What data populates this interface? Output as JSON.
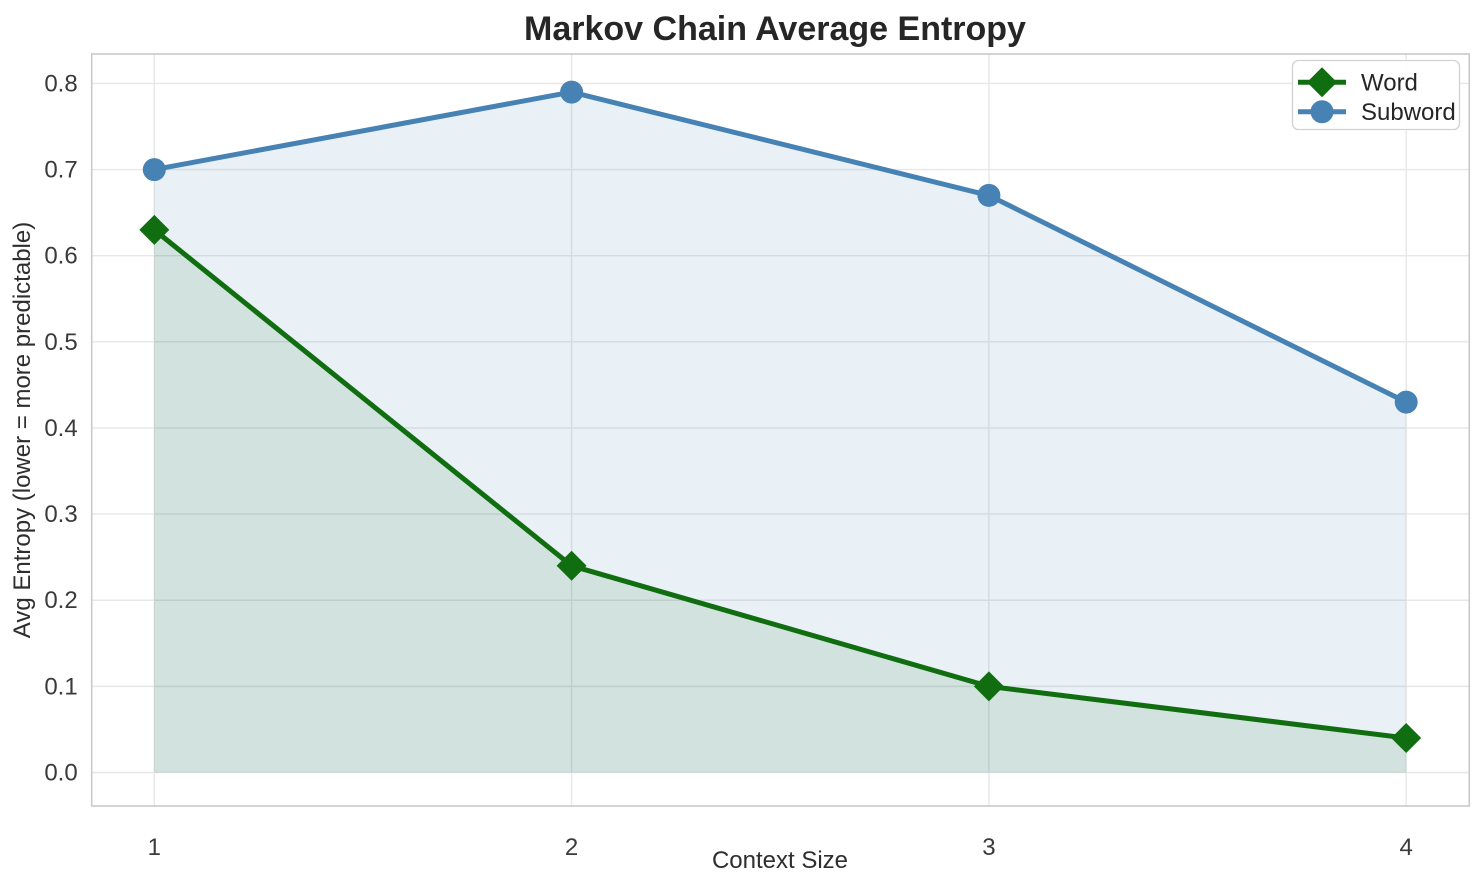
{
  "figure": {
    "background": "#ffffff"
  },
  "chart_data": {
    "type": "line",
    "title": "Markov Chain Average Entropy",
    "xlabel": "Context Size",
    "ylabel": "Avg Entropy (lower = more predictable)",
    "x": [
      1,
      2,
      3,
      4
    ],
    "series": [
      {
        "name": "Word",
        "values": [
          0.63,
          0.24,
          0.1,
          0.04
        ],
        "color": "#106e10",
        "fill_color": "rgba(16,110,16,0.11)",
        "marker": "diamond",
        "area_fill_to_zero": true
      },
      {
        "name": "Subword",
        "values": [
          0.7,
          0.79,
          0.67,
          0.43
        ],
        "color": "#4682b4",
        "fill_color": "rgba(70,130,180,0.12)",
        "marker": "circle",
        "area_fill_to_zero": true
      }
    ],
    "xtick_labels": [
      "1",
      "2",
      "3",
      "4"
    ],
    "ytick_labels": [
      "0.0",
      "0.1",
      "0.2",
      "0.3",
      "0.4",
      "0.5",
      "0.6",
      "0.7",
      "0.8"
    ],
    "xlim": [
      0.85,
      4.15
    ],
    "ylim": [
      -0.04,
      0.83
    ],
    "grid": true,
    "legend_position": "upper right",
    "line_width": 5,
    "marker_size": {
      "circle_radius": 11.5,
      "diamond_half_diagonal": 15
    }
  }
}
